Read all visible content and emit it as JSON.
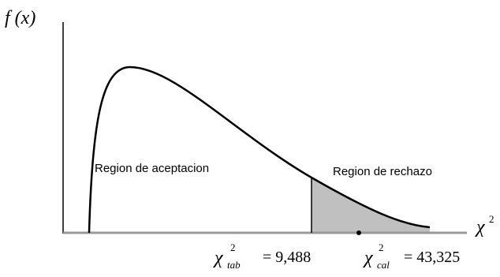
{
  "axes": {
    "y_label": "f (x)",
    "x_label": {
      "symbol": "χ",
      "exponent": "2"
    }
  },
  "regions": {
    "acceptance": "Region de aceptacion",
    "rejection": "Region de rechazo"
  },
  "markers": [
    {
      "symbol": "χ",
      "exponent": "2",
      "subscript": "tab",
      "value": "= 9,488"
    },
    {
      "symbol": "χ",
      "exponent": "2",
      "subscript": "cal",
      "value": "= 43,325"
    }
  ]
}
